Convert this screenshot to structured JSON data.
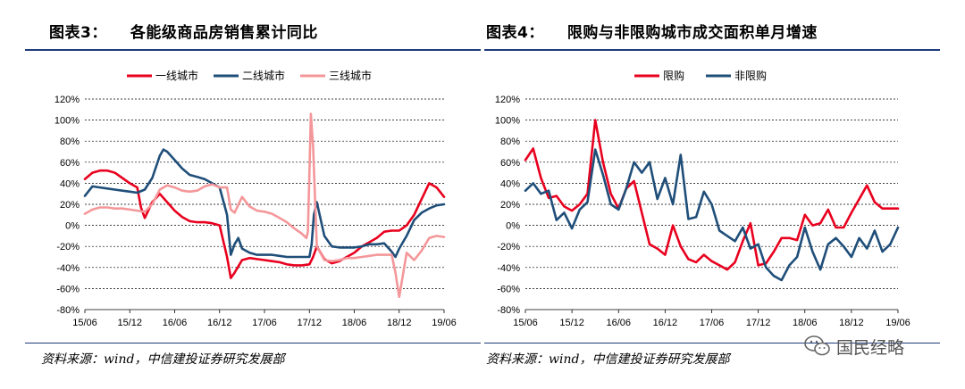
{
  "left": {
    "title_num": "图表3：",
    "title_text": "各能级商品房销售累计同比",
    "source": "资料来源：wind，中信建投证券研究发展部"
  },
  "right": {
    "title_num": "图表4：",
    "title_text": "限购与非限购城市成交面积单月增速",
    "source": "资料来源：wind，中信建投证券研究发展部"
  },
  "watermark": {
    "text": "国民经略",
    "icon": "wechat-icon"
  },
  "chart_data": [
    {
      "type": "line",
      "ylim": [
        -80,
        120
      ],
      "yticks": [
        -80,
        -60,
        -40,
        -20,
        0,
        20,
        40,
        60,
        80,
        100,
        120
      ],
      "ytick_labels": [
        "-80%",
        "-60%",
        "-40%",
        "-20%",
        "0%",
        "20%",
        "40%",
        "60%",
        "80%",
        "100%",
        "120%"
      ],
      "xlim": [
        0,
        48
      ],
      "xticks": [
        0,
        6,
        12,
        18,
        24,
        30,
        36,
        42,
        48
      ],
      "xtick_labels": [
        "15/06",
        "15/12",
        "16/06",
        "16/12",
        "17/06",
        "17/12",
        "18/06",
        "18/12",
        "19/06"
      ],
      "legend_position": "top",
      "grid": "horizontal-dashed",
      "series": [
        {
          "name": "一线城市",
          "color": "#e8001e",
          "x": [
            0,
            1,
            2,
            3,
            4,
            5,
            6,
            7,
            7.5,
            8,
            9,
            10,
            11,
            12,
            13,
            14,
            15,
            16,
            17,
            18,
            19,
            19.5,
            20,
            21,
            22,
            23,
            24,
            25,
            26,
            27,
            28,
            29,
            30,
            30.5,
            31,
            32,
            33,
            34,
            35,
            36,
            37,
            38,
            39,
            40,
            41,
            42,
            43,
            44,
            45,
            46,
            47,
            48
          ],
          "y": [
            44,
            50,
            52,
            52,
            50,
            45,
            40,
            36,
            17,
            7,
            22,
            30,
            22,
            14,
            8,
            4,
            3,
            3,
            2,
            0,
            -30,
            -50,
            -45,
            -33,
            -31,
            -32,
            -33,
            -34,
            -35,
            -37,
            -38,
            -38,
            -37,
            -30,
            -20,
            -32,
            -36,
            -34,
            -30,
            -26,
            -20,
            -16,
            -12,
            -6,
            -5,
            -5,
            0,
            10,
            25,
            40,
            36,
            27
          ]
        },
        {
          "name": "二线城市",
          "color": "#1f4e79",
          "x": [
            0,
            1,
            2,
            3,
            4,
            5,
            6,
            7,
            8,
            9,
            10,
            10.5,
            11,
            12,
            13,
            14,
            15,
            16,
            17,
            18,
            19,
            19.5,
            20,
            20.5,
            21,
            22,
            23,
            24,
            25,
            26,
            27,
            28,
            29,
            30,
            30.3,
            30.6,
            31,
            32,
            33,
            34,
            35,
            36,
            37,
            38,
            39,
            40,
            41,
            41.5,
            42,
            43,
            44,
            45,
            46,
            47,
            48
          ],
          "y": [
            28,
            37,
            36,
            35,
            34,
            33,
            32,
            31,
            34,
            45,
            66,
            72,
            70,
            62,
            54,
            48,
            46,
            44,
            40,
            36,
            10,
            -28,
            -18,
            -12,
            -22,
            -26,
            -28,
            -28,
            -28,
            -29,
            -30,
            -30,
            -30,
            -30,
            -18,
            10,
            22,
            -10,
            -20,
            -21,
            -21,
            -21,
            -20,
            -18,
            -18,
            -17,
            -25,
            -30,
            -22,
            -10,
            5,
            12,
            16,
            19,
            20
          ]
        },
        {
          "name": "三线城市",
          "color": "#f4979a",
          "x": [
            0,
            1,
            2,
            3,
            4,
            5,
            6,
            7,
            8,
            9,
            10,
            11,
            12,
            13,
            14,
            15,
            16,
            17,
            18,
            19,
            19.5,
            20,
            21,
            22,
            23,
            24,
            25,
            26,
            27,
            28,
            29,
            29.6,
            29.8,
            30,
            30.2,
            30.5,
            31,
            32,
            33,
            34,
            35,
            36,
            37,
            38,
            39,
            40,
            41,
            41.5,
            42,
            43,
            44,
            45,
            46,
            47,
            48
          ],
          "y": [
            11,
            15,
            17,
            17,
            16,
            16,
            15,
            14,
            13,
            20,
            34,
            38,
            36,
            33,
            32,
            33,
            37,
            39,
            36,
            36,
            15,
            12,
            27,
            18,
            14,
            13,
            11,
            7,
            3,
            -3,
            -8,
            -12,
            -6,
            50,
            106,
            75,
            -20,
            -33,
            -34,
            -33,
            -31,
            -31,
            -30,
            -29,
            -28,
            -28,
            -28,
            -45,
            -68,
            -26,
            -33,
            -24,
            -12,
            -10,
            -11
          ]
        }
      ]
    },
    {
      "type": "line",
      "ylim": [
        -80,
        120
      ],
      "yticks": [
        -80,
        -60,
        -40,
        -20,
        0,
        20,
        40,
        60,
        80,
        100,
        120
      ],
      "ytick_labels": [
        "-80%",
        "-60%",
        "-40%",
        "-20%",
        "0%",
        "20%",
        "40%",
        "60%",
        "80%",
        "100%",
        "120%"
      ],
      "xlim": [
        0,
        48
      ],
      "xticks": [
        0,
        6,
        12,
        18,
        24,
        30,
        36,
        42,
        48
      ],
      "xtick_labels": [
        "15/06",
        "15/12",
        "16/06",
        "16/12",
        "17/06",
        "17/12",
        "18/06",
        "18/12",
        "19/06"
      ],
      "legend_position": "top",
      "grid": "horizontal-dashed",
      "series": [
        {
          "name": "限购",
          "color": "#e8001e",
          "x": [
            0,
            1,
            2,
            3,
            4,
            5,
            6,
            7,
            8,
            9,
            10,
            11,
            12,
            13,
            14,
            15,
            16,
            17,
            18,
            19,
            20,
            21,
            22,
            23,
            24,
            25,
            26,
            27,
            28,
            29,
            30,
            31,
            32,
            33,
            34,
            35,
            36,
            37,
            38,
            39,
            40,
            41,
            42,
            43,
            44,
            45,
            46,
            47,
            48
          ],
          "y": [
            62,
            73,
            45,
            26,
            28,
            18,
            14,
            20,
            30,
            100,
            60,
            30,
            16,
            35,
            42,
            12,
            -18,
            -22,
            -28,
            0,
            -20,
            -32,
            -35,
            -28,
            -34,
            -38,
            -42,
            -35,
            -15,
            2,
            -38,
            -36,
            -25,
            -12,
            -12,
            -14,
            10,
            0,
            2,
            15,
            -2,
            -2,
            12,
            25,
            38,
            22,
            16,
            16,
            16
          ]
        },
        {
          "name": "非限购",
          "color": "#1f4e79",
          "x": [
            0,
            1,
            2,
            3,
            4,
            5,
            6,
            7,
            8,
            9,
            10,
            11,
            12,
            13,
            14,
            15,
            16,
            17,
            18,
            19,
            20,
            21,
            22,
            23,
            24,
            25,
            26,
            27,
            28,
            29,
            30,
            31,
            32,
            33,
            34,
            35,
            36,
            37,
            38,
            39,
            40,
            41,
            42,
            43,
            44,
            45,
            46,
            47,
            48
          ],
          "y": [
            33,
            40,
            30,
            33,
            5,
            12,
            -3,
            15,
            22,
            72,
            48,
            20,
            15,
            35,
            60,
            50,
            60,
            25,
            45,
            20,
            67,
            6,
            8,
            32,
            20,
            -5,
            -10,
            -15,
            -2,
            -22,
            -18,
            -40,
            -48,
            -52,
            -38,
            -30,
            -2,
            -25,
            -42,
            -18,
            -12,
            -20,
            -30,
            -12,
            -22,
            -5,
            -25,
            -18,
            -2
          ]
        }
      ]
    }
  ]
}
